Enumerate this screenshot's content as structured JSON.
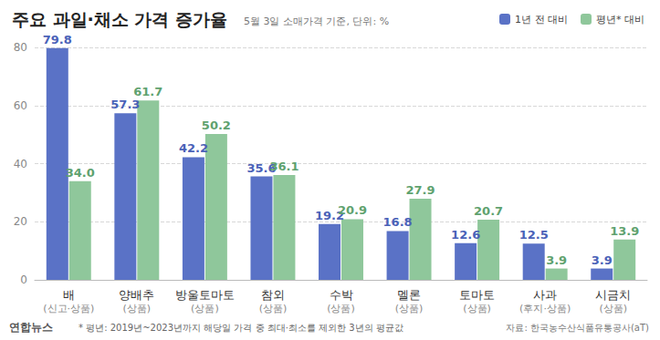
{
  "chart_data": {
    "type": "bar",
    "title": "주요 과일·채소 가격 증가율",
    "subtitle": "5월 3일 소매가격 기준, 단위: %",
    "categories": [
      "배\n(신고·상품)",
      "양배추\n(상품)",
      "방울토마토\n(상품)",
      "참외\n(상품)",
      "수박\n(상품)",
      "멜론\n(상품)",
      "토마토\n(상품)",
      "사과\n(후지·상품)",
      "시금치\n(상품)"
    ],
    "series": [
      {
        "name": "1년 전 대비",
        "color": "#5a72c6",
        "values": [
          79.8,
          57.3,
          42.2,
          35.6,
          19.2,
          16.8,
          12.6,
          12.5,
          3.9
        ],
        "value_labels": [
          "79.8",
          "57.3",
          "42.2",
          "35.6",
          "19.2",
          "16.8",
          "12.6",
          "12.5",
          "3.9"
        ]
      },
      {
        "name": "평년* 대비",
        "color": "#8fc79b",
        "values": [
          34.0,
          61.7,
          50.2,
          36.1,
          20.9,
          27.9,
          20.7,
          3.9,
          13.9
        ],
        "value_labels": [
          "34.0",
          "61.7",
          "50.2",
          "36.1",
          "20.9",
          "27.9",
          "20.7",
          "3.9",
          "13.9"
        ]
      }
    ],
    "ylim": [
      0,
      80
    ],
    "yticks": [
      0,
      20,
      40,
      60,
      80
    ],
    "grid": true,
    "legend": "top-right",
    "data_labels": true,
    "annotations": [
      "연합뉴스",
      "* 평년: 2019년~2023년까지 해당일 가격 중 최대·최소를 제외한 3년의 평균값",
      "자료: 한국농수산식품유통공사(aT)"
    ]
  }
}
